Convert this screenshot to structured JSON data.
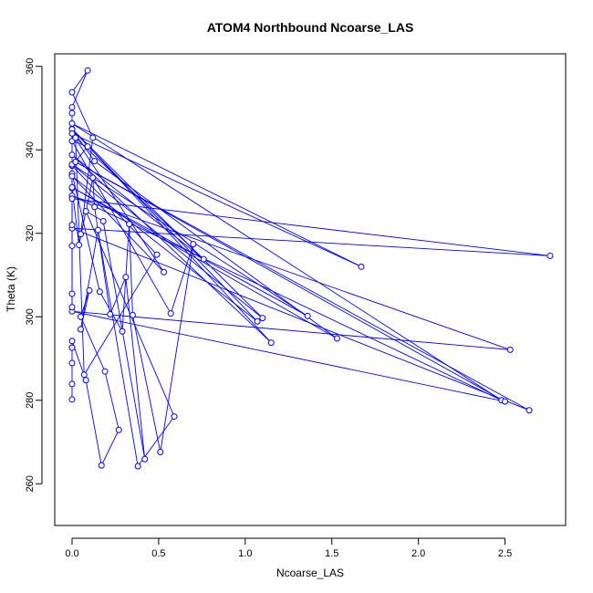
{
  "chart_data": {
    "type": "scatter",
    "title": "ATOM4 Northbound Ncoarse_LAS",
    "xlabel": "Ncoarse_LAS",
    "ylabel": "Theta (K)",
    "xlim": [
      -0.1,
      2.85
    ],
    "ylim": [
      250,
      363
    ],
    "xticks": [
      0.0,
      0.5,
      1.0,
      1.5,
      2.0,
      2.5
    ],
    "xtick_labels": [
      "0.0",
      "0.5",
      "1.0",
      "1.5",
      "2.0",
      "2.5"
    ],
    "yticks": [
      260,
      280,
      300,
      320,
      340,
      360
    ],
    "ytick_labels": [
      "260",
      "280",
      "300",
      "320",
      "340",
      "360"
    ],
    "grid": false,
    "legend": "none",
    "series_color": "#0000ff",
    "connected": true,
    "points": [
      [
        0.0,
        280.2
      ],
      [
        0.0,
        283.9
      ],
      [
        0.0,
        288.9
      ],
      [
        0.0,
        292.6
      ],
      [
        0.0,
        294.2
      ],
      [
        0.08,
        284.8
      ],
      [
        0.17,
        264.4
      ],
      [
        0.27,
        272.9
      ],
      [
        0.19,
        286.9
      ],
      [
        0.05,
        300.0
      ],
      [
        0.1,
        306.3
      ],
      [
        0.05,
        297.0
      ],
      [
        0.15,
        320.8
      ],
      [
        0.38,
        264.2
      ],
      [
        0.59,
        276.1
      ],
      [
        0.08,
        325.3
      ],
      [
        0.18,
        322.9
      ],
      [
        0.42,
        265.9
      ],
      [
        0.31,
        309.5
      ],
      [
        0.22,
        300.6
      ],
      [
        0.13,
        326.3
      ],
      [
        0.12,
        333.3
      ],
      [
        0.04,
        317.2
      ],
      [
        0.0,
        330.8
      ],
      [
        0.0,
        334.3
      ],
      [
        0.16,
        306.0
      ],
      [
        0.29,
        296.5
      ],
      [
        0.33,
        322.2
      ],
      [
        0.35,
        300.4
      ],
      [
        0.51,
        267.6
      ],
      [
        0.7,
        317.4
      ],
      [
        0.57,
        300.8
      ],
      [
        0.0,
        342.1
      ],
      [
        0.09,
        340.8
      ],
      [
        0.0,
        336.2
      ],
      [
        0.49,
        314.9
      ],
      [
        0.07,
        286.1
      ],
      [
        0.02,
        342.9
      ],
      [
        0.76,
        313.8
      ],
      [
        0.0,
        338.8
      ],
      [
        1.15,
        293.8
      ],
      [
        0.0,
        345.0
      ],
      [
        1.1,
        299.7
      ],
      [
        0.0,
        336.5
      ],
      [
        1.36,
        300.2
      ],
      [
        0.0,
        331.0
      ],
      [
        1.53,
        294.8
      ],
      [
        0.13,
        337.3
      ],
      [
        0.0,
        344.9
      ],
      [
        1.07,
        298.9
      ],
      [
        0.0,
        333.7
      ],
      [
        0.53,
        310.7
      ],
      [
        0.0,
        343.9
      ],
      [
        1.67,
        312.0
      ],
      [
        0.0,
        346.3
      ],
      [
        2.48,
        280.0
      ],
      [
        0.0,
        329.0
      ],
      [
        2.53,
        292.1
      ],
      [
        0.0,
        301.3
      ],
      [
        2.5,
        279.7
      ],
      [
        0.02,
        337.1
      ],
      [
        2.64,
        277.6
      ],
      [
        0.0,
        321.2
      ],
      [
        2.76,
        314.6
      ],
      [
        0.0,
        328.3
      ],
      [
        0.0,
        322.0
      ],
      [
        0.0,
        305.5
      ],
      [
        0.0,
        302.3
      ],
      [
        0.0,
        317.0
      ],
      [
        0.0,
        348.8
      ],
      [
        0.0,
        350.2
      ],
      [
        0.09,
        359.0
      ],
      [
        0.0,
        353.8
      ],
      [
        0.12,
        342.9
      ],
      [
        0.05,
        319.8
      ]
    ]
  }
}
